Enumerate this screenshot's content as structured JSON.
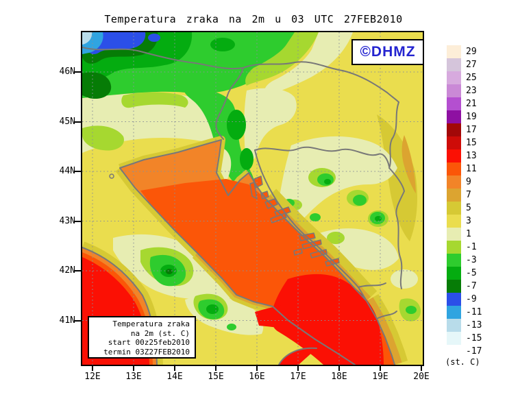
{
  "title": "Temperatura zraka na 2m u 03 UTC 27FEB2010",
  "watermark_label": "©DHMZ",
  "info_box": {
    "lines": [
      "Temperatura zraka",
      "na 2m (st. C)",
      "start 00z25feb2010",
      "termin 03Z27FEB2010"
    ]
  },
  "axes": {
    "lat_labels": [
      "46N",
      "45N",
      "44N",
      "43N",
      "42N",
      "41N"
    ],
    "lon_labels": [
      "12E",
      "13E",
      "14E",
      "15E",
      "16E",
      "17E",
      "18E",
      "19E",
      "20E"
    ]
  },
  "legend": {
    "unit_label": "(st. C)",
    "entries": [
      {
        "label": "29",
        "color": "#fdeed8"
      },
      {
        "label": "27",
        "color": "#d5c5db"
      },
      {
        "label": "25",
        "color": "#d7aade"
      },
      {
        "label": "23",
        "color": "#ca89d6"
      },
      {
        "label": "21",
        "color": "#b44fd0"
      },
      {
        "label": "19",
        "color": "#8e10a2"
      },
      {
        "label": "17",
        "color": "#a20808"
      },
      {
        "label": "15",
        "color": "#ce0c08"
      },
      {
        "label": "13",
        "color": "#fb1004"
      },
      {
        "label": "11",
        "color": "#fb5608"
      },
      {
        "label": "9",
        "color": "#f28428"
      },
      {
        "label": "7",
        "color": "#dca430"
      },
      {
        "label": "5",
        "color": "#d6c934"
      },
      {
        "label": "3",
        "color": "#eadd4e"
      },
      {
        "label": "1",
        "color": "#e7edb2"
      },
      {
        "label": "-1",
        "color": "#a6d830"
      },
      {
        "label": "-3",
        "color": "#2ecc2e"
      },
      {
        "label": "-5",
        "color": "#04ac10"
      },
      {
        "label": "-7",
        "color": "#067c06"
      },
      {
        "label": "-9",
        "color": "#2b4fe8"
      },
      {
        "label": "-11",
        "color": "#30a4e0"
      },
      {
        "label": "-13",
        "color": "#b8dcea"
      },
      {
        "label": "-15",
        "color": "#e6f7f9"
      },
      {
        "label": "-17",
        "color": "#ffffff"
      }
    ]
  },
  "colors": {
    "watermark_text": "#2424d0",
    "coastline": "#787878",
    "grid": "#8a9098",
    "frame": "#000000"
  }
}
